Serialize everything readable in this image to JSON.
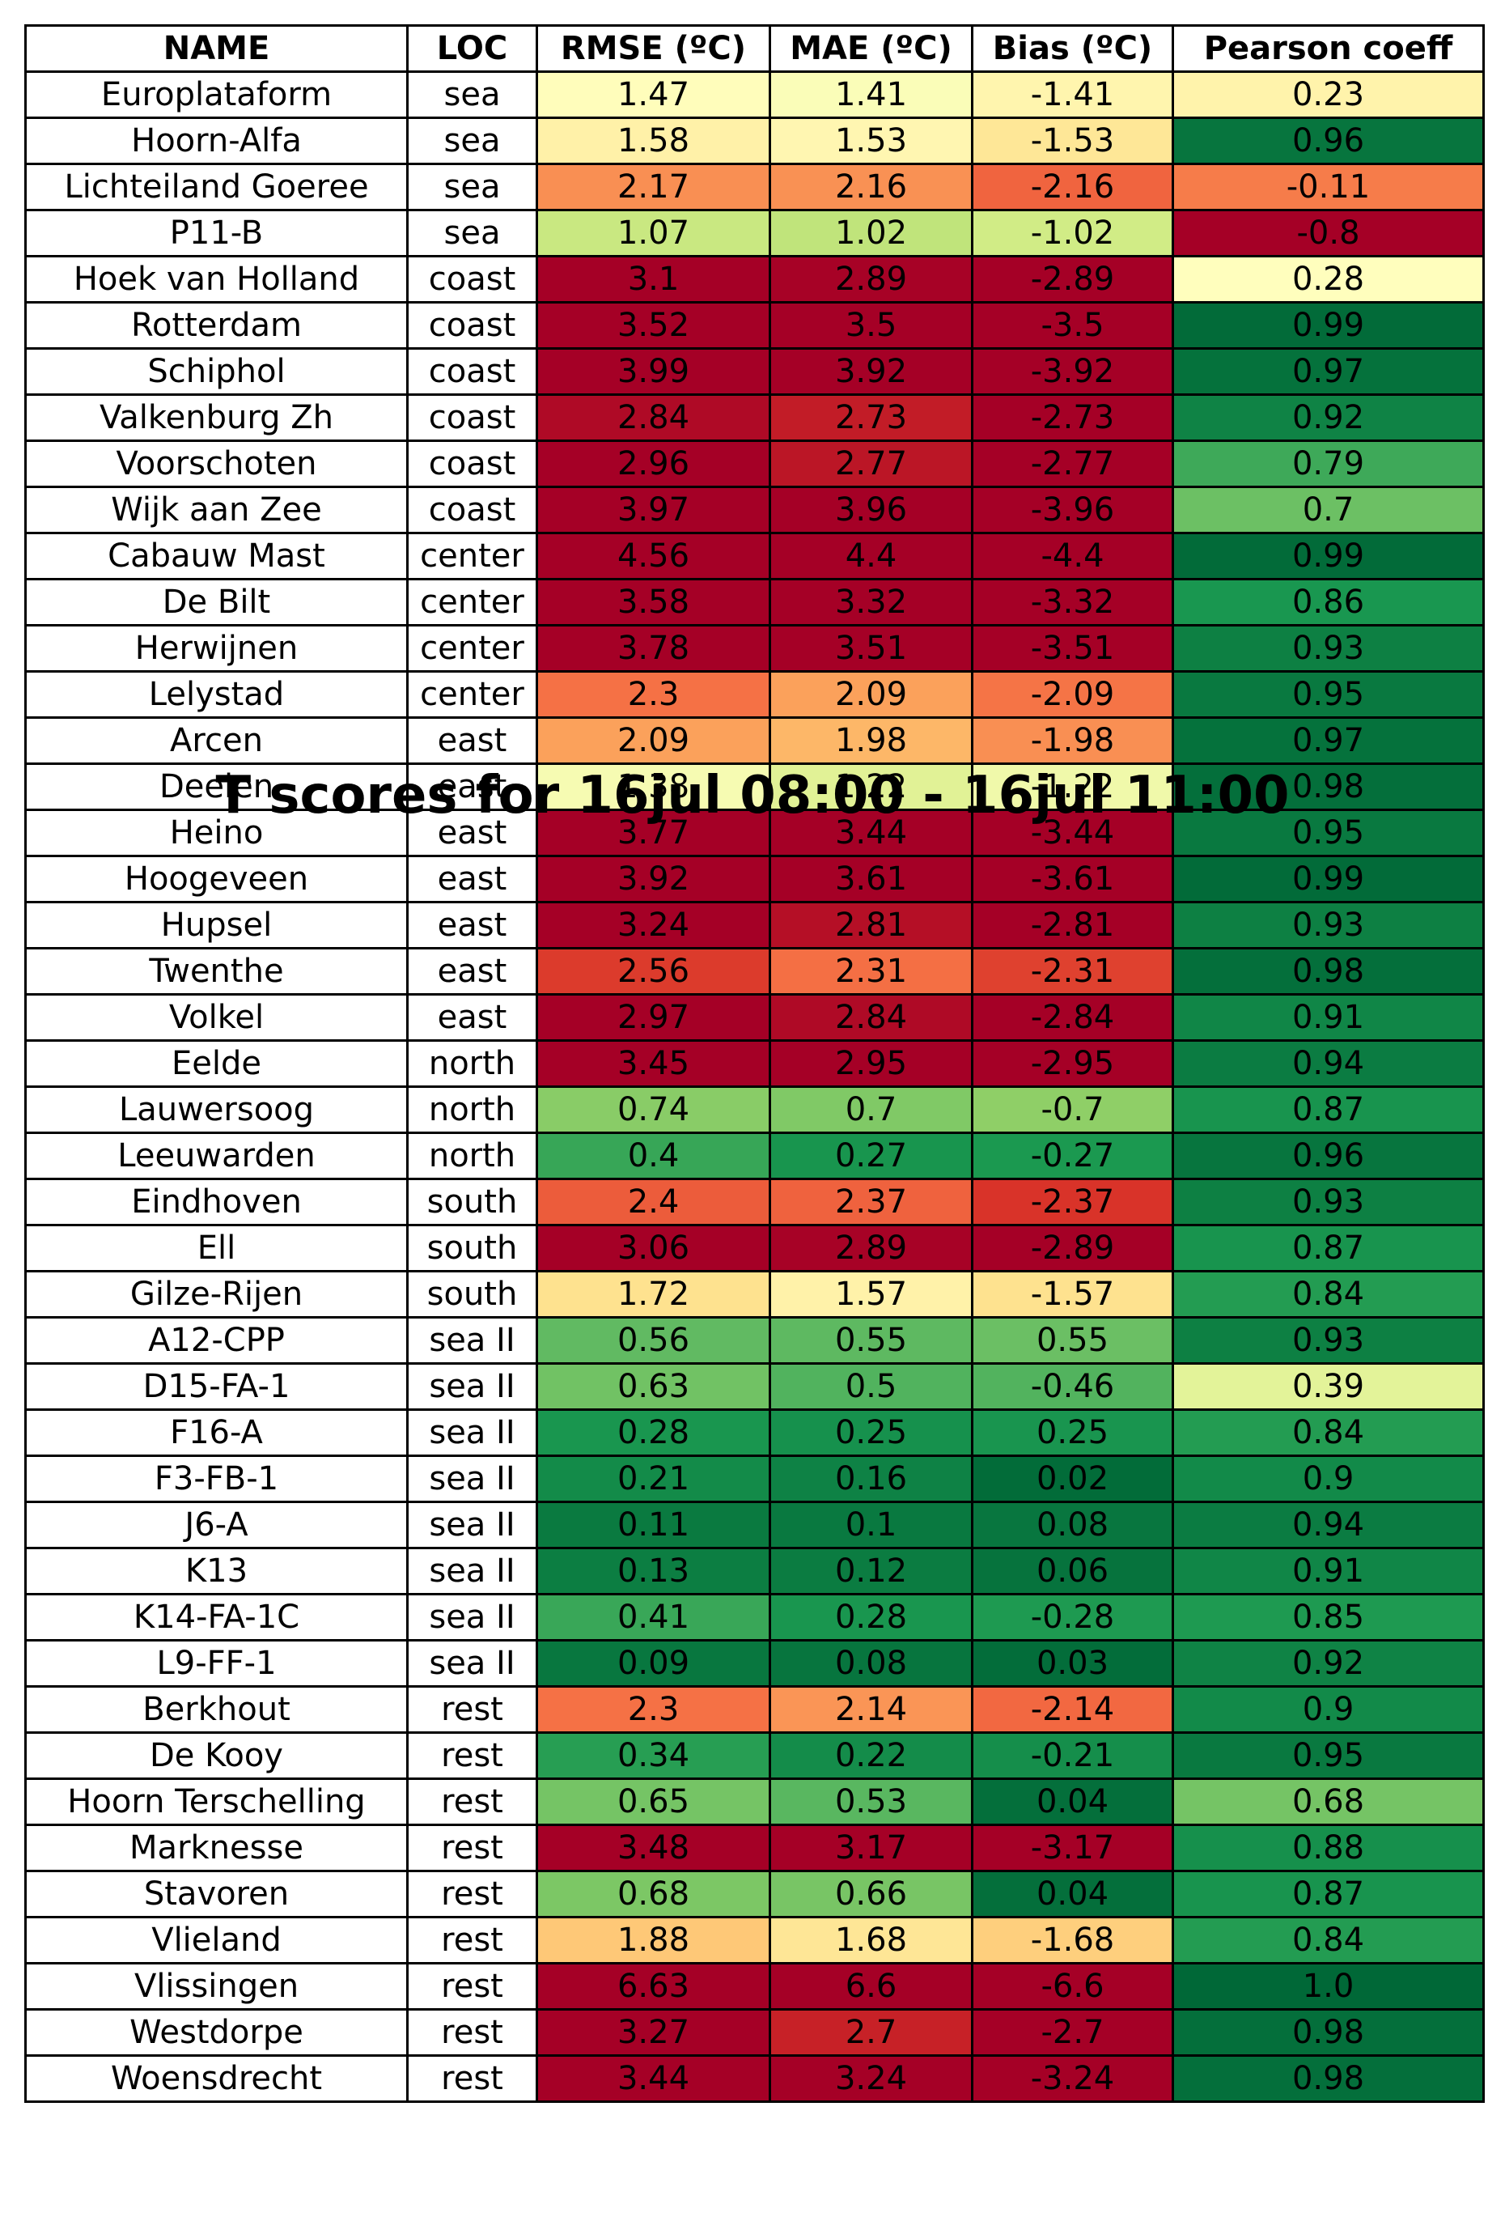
{
  "chart_data": {
    "type": "table",
    "title": "T scores for 16jul 08:00 - 16jul 11:00",
    "columns": [
      "NAME",
      "LOC",
      "RMSE (ºC)",
      "MAE (ºC)",
      "Bias (ºC)",
      "Pearson coeff"
    ],
    "colormap": "RdYlGn",
    "rows": [
      {
        "name": "Europlataform",
        "loc": "sea",
        "rmse": "1.47",
        "mae": "1.41",
        "bias": "-1.41",
        "pearson": "0.23"
      },
      {
        "name": "Hoorn-Alfa",
        "loc": "sea",
        "rmse": "1.58",
        "mae": "1.53",
        "bias": "-1.53",
        "pearson": "0.96"
      },
      {
        "name": "Lichteiland Goeree",
        "loc": "sea",
        "rmse": "2.17",
        "mae": "2.16",
        "bias": "-2.16",
        "pearson": "-0.11"
      },
      {
        "name": "P11-B",
        "loc": "sea",
        "rmse": "1.07",
        "mae": "1.02",
        "bias": "-1.02",
        "pearson": "-0.8"
      },
      {
        "name": "Hoek van Holland",
        "loc": "coast",
        "rmse": "3.1",
        "mae": "2.89",
        "bias": "-2.89",
        "pearson": "0.28"
      },
      {
        "name": "Rotterdam",
        "loc": "coast",
        "rmse": "3.52",
        "mae": "3.5",
        "bias": "-3.5",
        "pearson": "0.99"
      },
      {
        "name": "Schiphol",
        "loc": "coast",
        "rmse": "3.99",
        "mae": "3.92",
        "bias": "-3.92",
        "pearson": "0.97"
      },
      {
        "name": "Valkenburg Zh",
        "loc": "coast",
        "rmse": "2.84",
        "mae": "2.73",
        "bias": "-2.73",
        "pearson": "0.92"
      },
      {
        "name": "Voorschoten",
        "loc": "coast",
        "rmse": "2.96",
        "mae": "2.77",
        "bias": "-2.77",
        "pearson": "0.79"
      },
      {
        "name": "Wijk aan Zee",
        "loc": "coast",
        "rmse": "3.97",
        "mae": "3.96",
        "bias": "-3.96",
        "pearson": "0.7"
      },
      {
        "name": "Cabauw Mast",
        "loc": "center",
        "rmse": "4.56",
        "mae": "4.4",
        "bias": "-4.4",
        "pearson": "0.99"
      },
      {
        "name": "De Bilt",
        "loc": "center",
        "rmse": "3.58",
        "mae": "3.32",
        "bias": "-3.32",
        "pearson": "0.86"
      },
      {
        "name": "Herwijnen",
        "loc": "center",
        "rmse": "3.78",
        "mae": "3.51",
        "bias": "-3.51",
        "pearson": "0.93"
      },
      {
        "name": "Lelystad",
        "loc": "center",
        "rmse": "2.3",
        "mae": "2.09",
        "bias": "-2.09",
        "pearson": "0.95"
      },
      {
        "name": "Arcen",
        "loc": "east",
        "rmse": "2.09",
        "mae": "1.98",
        "bias": "-1.98",
        "pearson": "0.97"
      },
      {
        "name": "Deelen",
        "loc": "east",
        "rmse": "1.38",
        "mae": "1.22",
        "bias": "-1.22",
        "pearson": "0.98"
      },
      {
        "name": "Heino",
        "loc": "east",
        "rmse": "3.77",
        "mae": "3.44",
        "bias": "-3.44",
        "pearson": "0.95"
      },
      {
        "name": "Hoogeveen",
        "loc": "east",
        "rmse": "3.92",
        "mae": "3.61",
        "bias": "-3.61",
        "pearson": "0.99"
      },
      {
        "name": "Hupsel",
        "loc": "east",
        "rmse": "3.24",
        "mae": "2.81",
        "bias": "-2.81",
        "pearson": "0.93"
      },
      {
        "name": "Twenthe",
        "loc": "east",
        "rmse": "2.56",
        "mae": "2.31",
        "bias": "-2.31",
        "pearson": "0.98"
      },
      {
        "name": "Volkel",
        "loc": "east",
        "rmse": "2.97",
        "mae": "2.84",
        "bias": "-2.84",
        "pearson": "0.91"
      },
      {
        "name": "Eelde",
        "loc": "north",
        "rmse": "3.45",
        "mae": "2.95",
        "bias": "-2.95",
        "pearson": "0.94"
      },
      {
        "name": "Lauwersoog",
        "loc": "north",
        "rmse": "0.74",
        "mae": "0.7",
        "bias": "-0.7",
        "pearson": "0.87"
      },
      {
        "name": "Leeuwarden",
        "loc": "north",
        "rmse": "0.4",
        "mae": "0.27",
        "bias": "-0.27",
        "pearson": "0.96"
      },
      {
        "name": "Eindhoven",
        "loc": "south",
        "rmse": "2.4",
        "mae": "2.37",
        "bias": "-2.37",
        "pearson": "0.93"
      },
      {
        "name": "Ell",
        "loc": "south",
        "rmse": "3.06",
        "mae": "2.89",
        "bias": "-2.89",
        "pearson": "0.87"
      },
      {
        "name": "Gilze-Rijen",
        "loc": "south",
        "rmse": "1.72",
        "mae": "1.57",
        "bias": "-1.57",
        "pearson": "0.84"
      },
      {
        "name": "A12-CPP",
        "loc": "sea II",
        "rmse": "0.56",
        "mae": "0.55",
        "bias": "0.55",
        "pearson": "0.93"
      },
      {
        "name": "D15-FA-1",
        "loc": "sea II",
        "rmse": "0.63",
        "mae": "0.5",
        "bias": "-0.46",
        "pearson": "0.39"
      },
      {
        "name": "F16-A",
        "loc": "sea II",
        "rmse": "0.28",
        "mae": "0.25",
        "bias": "0.25",
        "pearson": "0.84"
      },
      {
        "name": "F3-FB-1",
        "loc": "sea II",
        "rmse": "0.21",
        "mae": "0.16",
        "bias": "0.02",
        "pearson": "0.9"
      },
      {
        "name": "J6-A",
        "loc": "sea II",
        "rmse": "0.11",
        "mae": "0.1",
        "bias": "0.08",
        "pearson": "0.94"
      },
      {
        "name": "K13",
        "loc": "sea II",
        "rmse": "0.13",
        "mae": "0.12",
        "bias": "0.06",
        "pearson": "0.91"
      },
      {
        "name": "K14-FA-1C",
        "loc": "sea II",
        "rmse": "0.41",
        "mae": "0.28",
        "bias": "-0.28",
        "pearson": "0.85"
      },
      {
        "name": "L9-FF-1",
        "loc": "sea II",
        "rmse": "0.09",
        "mae": "0.08",
        "bias": "0.03",
        "pearson": "0.92"
      },
      {
        "name": "Berkhout",
        "loc": "rest",
        "rmse": "2.3",
        "mae": "2.14",
        "bias": "-2.14",
        "pearson": "0.9"
      },
      {
        "name": "De Kooy",
        "loc": "rest",
        "rmse": "0.34",
        "mae": "0.22",
        "bias": "-0.21",
        "pearson": "0.95"
      },
      {
        "name": "Hoorn Terschelling",
        "loc": "rest",
        "rmse": "0.65",
        "mae": "0.53",
        "bias": "0.04",
        "pearson": "0.68"
      },
      {
        "name": "Marknesse",
        "loc": "rest",
        "rmse": "3.48",
        "mae": "3.17",
        "bias": "-3.17",
        "pearson": "0.88"
      },
      {
        "name": "Stavoren",
        "loc": "rest",
        "rmse": "0.68",
        "mae": "0.66",
        "bias": "0.04",
        "pearson": "0.87"
      },
      {
        "name": "Vlieland",
        "loc": "rest",
        "rmse": "1.88",
        "mae": "1.68",
        "bias": "-1.68",
        "pearson": "0.84"
      },
      {
        "name": "Vlissingen",
        "loc": "rest",
        "rmse": "6.63",
        "mae": "6.6",
        "bias": "-6.6",
        "pearson": "1.0"
      },
      {
        "name": "Westdorpe",
        "loc": "rest",
        "rmse": "3.27",
        "mae": "2.7",
        "bias": "-2.7",
        "pearson": "0.98"
      },
      {
        "name": "Woensdrecht",
        "loc": "rest",
        "rmse": "3.44",
        "mae": "3.24",
        "bias": "-3.24",
        "pearson": "0.98"
      }
    ]
  }
}
